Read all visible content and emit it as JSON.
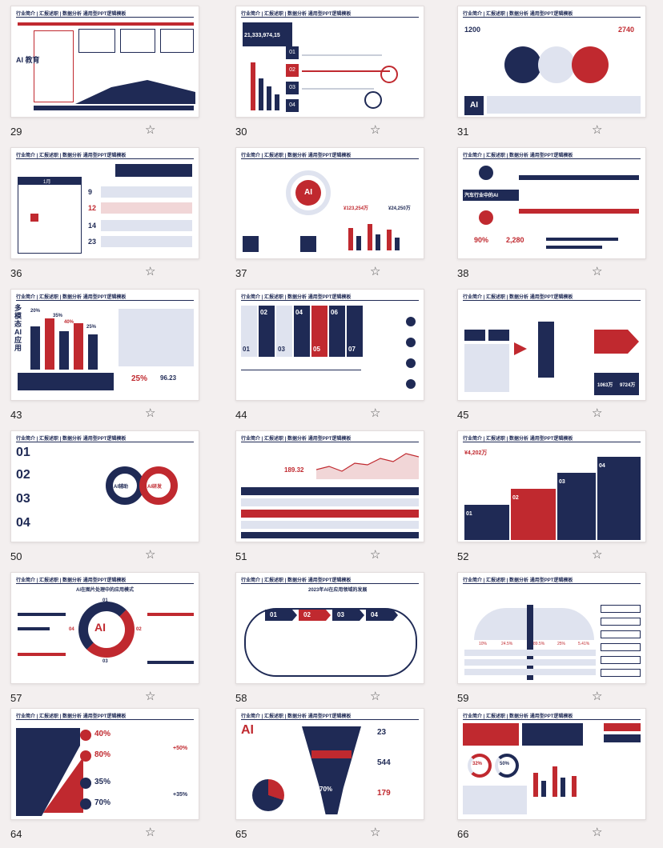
{
  "slides": [
    {
      "number": "29",
      "heading": "行业简介 | 汇报述职 | 数据分析 通用型PPT逻辑模板"
    },
    {
      "number": "30",
      "heading": "行业简介 | 汇报述职 | 数据分析 通用型PPT逻辑模板"
    },
    {
      "number": "31",
      "heading": "行业简介 | 汇报述职 | 数据分析 通用型PPT逻辑模板"
    },
    {
      "number": "36",
      "heading": "行业简介 | 汇报述职 | 数据分析 通用型PPT逻辑模板"
    },
    {
      "number": "37",
      "heading": "行业简介 | 汇报述职 | 数据分析 通用型PPT逻辑模板"
    },
    {
      "number": "38",
      "heading": "行业简介 | 汇报述职 | 数据分析 通用型PPT逻辑模板"
    },
    {
      "number": "43",
      "heading": "行业简介 | 汇报述职 | 数据分析 通用型PPT逻辑模板"
    },
    {
      "number": "44",
      "heading": "行业简介 | 汇报述职 | 数据分析 通用型PPT逻辑模板"
    },
    {
      "number": "45",
      "heading": "行业简介 | 汇报述职 | 数据分析 通用型PPT逻辑模板"
    },
    {
      "number": "50",
      "heading": "行业简介 | 汇报述职 | 数据分析 通用型PPT逻辑模板"
    },
    {
      "number": "51",
      "heading": "行业简介 | 汇报述职 | 数据分析 通用型PPT逻辑模板"
    },
    {
      "number": "52",
      "heading": "行业简介 | 汇报述职 | 数据分析 通用型PPT逻辑模板"
    },
    {
      "number": "57",
      "heading": "行业简介 | 汇报述职 | 数据分析 通用型PPT逻辑模板"
    },
    {
      "number": "58",
      "heading": "行业简介 | 汇报述职 | 数据分析 通用型PPT逻辑模板"
    },
    {
      "number": "59",
      "heading": "行业简介 | 汇报述职 | 数据分析 通用型PPT逻辑模板"
    },
    {
      "number": "64",
      "heading": "行业简介 | 汇报述职 | 数据分析 通用型PPT逻辑模板"
    },
    {
      "number": "65",
      "heading": "行业简介 | 汇报述职 | 数据分析 通用型PPT逻辑模板"
    },
    {
      "number": "66",
      "heading": "行业简介 | 汇报述职 | 数据分析 通用型PPT逻辑模板"
    }
  ],
  "slide_text": {
    "s29_title": "AI 教育",
    "s30_big": "21,333,974,15",
    "s30_nums": [
      "01",
      "02",
      "03",
      "04"
    ],
    "s31_left": "1200",
    "s31_right": "2740",
    "s31_ai": "AI",
    "s36_month": "1月",
    "s36_days": [
      "9",
      "12",
      "14",
      "23"
    ],
    "s37_ai": "AI",
    "s37_val1": "¥123,254万",
    "s37_val2": "¥24,250万",
    "s38_title": "汽车行业中的AI",
    "s38_pct": "90%",
    "s38_val": "2,280",
    "s43_title": "多模态AI应用",
    "s43_pcts": [
      "20%",
      "35%",
      "40%",
      "25%"
    ],
    "s43_big": "96.23",
    "s43_small": "25%",
    "s44_nums": [
      "01",
      "02",
      "03",
      "04",
      "05",
      "06",
      "07"
    ],
    "s45_big": "1063万",
    "s45_big2": "9724万",
    "s50_nums": [
      "01",
      "02",
      "03",
      "04"
    ],
    "s50_left": "AI辅助",
    "s50_right": "AI研发",
    "s51_val": "189.32",
    "s52_val": "¥4,202万",
    "s52_nums": [
      "01",
      "02",
      "03",
      "04"
    ],
    "s57_title": "AI在图片处理中的应用模式",
    "s57_center": "AI",
    "s57_nums": [
      "01",
      "02",
      "03",
      "04"
    ],
    "s58_title": "2023年AI在应用领域的发展",
    "s58_nums": [
      "01",
      "02",
      "03",
      "04"
    ],
    "s59_pcts": [
      "10%",
      "24.5%",
      "89.5%",
      "25%",
      "5.41%"
    ],
    "s64_pcts": [
      "40%",
      "80%",
      "35%",
      "70%"
    ],
    "s64_side": [
      "+50%",
      "+35%"
    ],
    "s65_ai": "AI",
    "s65_nums": [
      "23",
      "544",
      "179"
    ],
    "s65_pct": "70%",
    "s66_pcts": [
      "32%",
      "50%"
    ]
  },
  "icons": {
    "favorite": "star-outline-icon"
  },
  "colors": {
    "navy": "#1f2a55",
    "red": "#c0292f",
    "background": "#f3efef"
  }
}
